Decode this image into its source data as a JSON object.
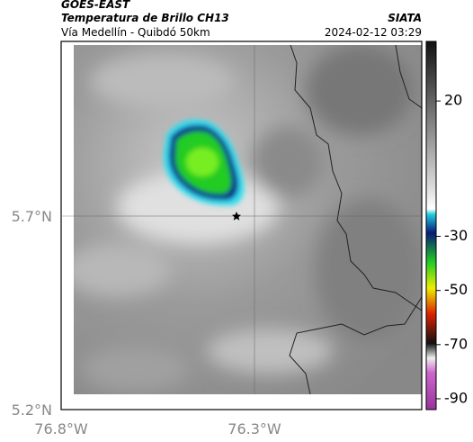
{
  "header": {
    "satellite": "GOES-EAST",
    "title": "Temperatura de Brillo CH13",
    "subtitle": "Vía Medellín - Quibdó 50km",
    "source": "SIATA",
    "datetime": "2024-02-12 03:29"
  },
  "map": {
    "lat_labels": [
      "5.7°N",
      "5.2°N"
    ],
    "lon_labels": [
      "76.8°W",
      "76.3°W"
    ]
  },
  "colorbar": {
    "lim": [
      42,
      -94
    ],
    "ticks": [
      20,
      -30,
      -50,
      -70,
      -90
    ]
  }
}
